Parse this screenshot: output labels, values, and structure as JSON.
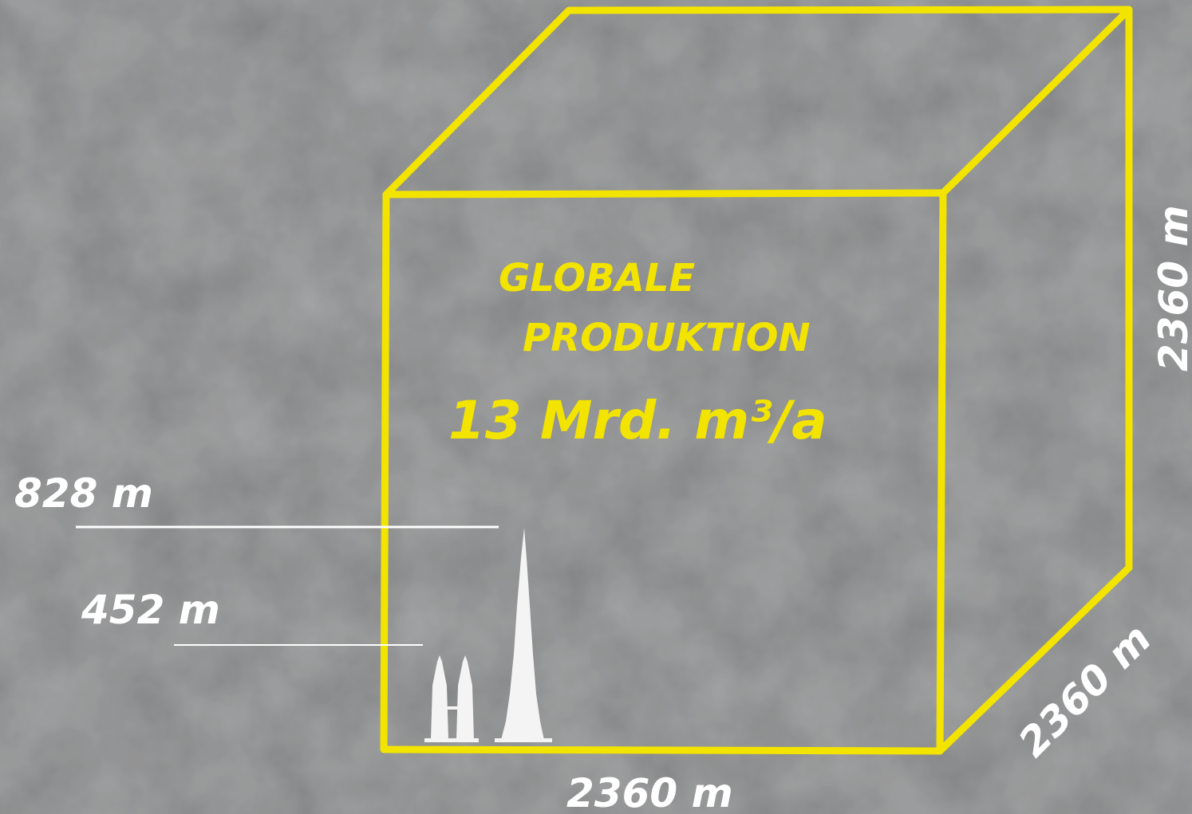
{
  "diagram": {
    "title_line1": "GLOBALE",
    "title_line2": "PRODUKTION",
    "volume": "13 Mrd. m³/a",
    "edge_front": "2360 m",
    "edge_depth": "2360 m",
    "edge_height": "2360 m",
    "height_tall": "828 m",
    "height_twin": "452 m",
    "colors": {
      "cube": "#f3e400",
      "labels": "#ffffff",
      "background": "#8a8b8c"
    }
  }
}
